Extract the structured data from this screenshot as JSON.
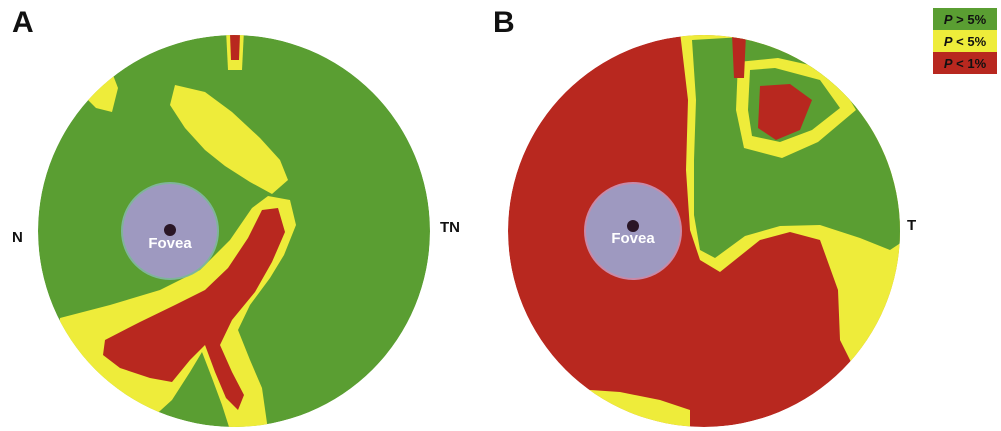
{
  "colors": {
    "green": "#5a9e32",
    "yellow": "#eeec3a",
    "red": "#b8281f",
    "fovea": "#9e99c0",
    "fovea_center": "#2a1626"
  },
  "panels": [
    {
      "label": "A",
      "left_label": "N",
      "right_label": "TN",
      "center_label": "Fovea"
    },
    {
      "label": "B",
      "left_label": "",
      "right_label": "T",
      "center_label": "Fovea"
    }
  ],
  "legend": [
    {
      "p": "P",
      "rest": " > 5%",
      "color": "#5a9e32"
    },
    {
      "p": "P",
      "rest": " < 5%",
      "color": "#eeec3a"
    },
    {
      "p": "P",
      "rest": " < 1%",
      "color": "#b8281f"
    }
  ]
}
